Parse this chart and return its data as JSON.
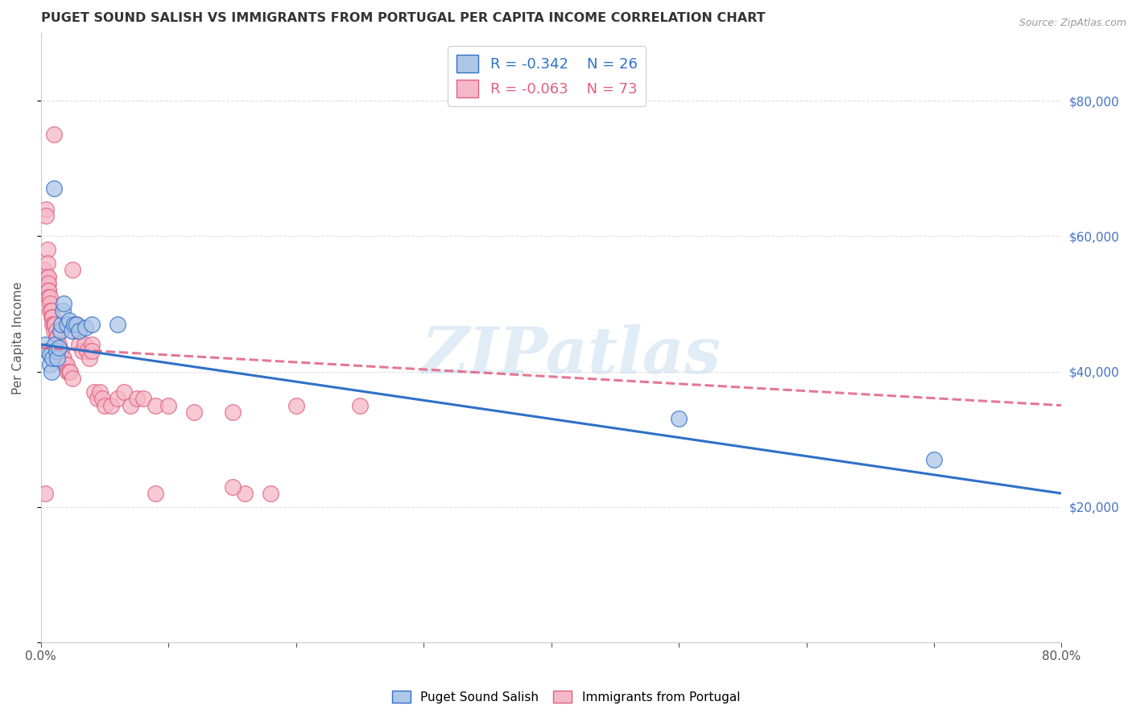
{
  "title": "PUGET SOUND SALISH VS IMMIGRANTS FROM PORTUGAL PER CAPITA INCOME CORRELATION CHART",
  "source": "Source: ZipAtlas.com",
  "ylabel": "Per Capita Income",
  "legend_blue_r": "-0.342",
  "legend_blue_n": "26",
  "legend_pink_r": "-0.063",
  "legend_pink_n": "73",
  "label_blue": "Puget Sound Salish",
  "label_pink": "Immigrants from Portugal",
  "blue_color": "#aec6e8",
  "pink_color": "#f5b8c8",
  "blue_line_color": "#3070c8",
  "pink_line_color": "#e06080",
  "blue_scatter": [
    [
      0.003,
      44000
    ],
    [
      0.005,
      43000
    ],
    [
      0.007,
      42500
    ],
    [
      0.007,
      41000
    ],
    [
      0.008,
      40000
    ],
    [
      0.009,
      42000
    ],
    [
      0.01,
      67000
    ],
    [
      0.011,
      44000
    ],
    [
      0.012,
      43000
    ],
    [
      0.013,
      42000
    ],
    [
      0.014,
      43500
    ],
    [
      0.015,
      46000
    ],
    [
      0.016,
      47000
    ],
    [
      0.017,
      49000
    ],
    [
      0.018,
      50000
    ],
    [
      0.02,
      47000
    ],
    [
      0.022,
      47500
    ],
    [
      0.024,
      46000
    ],
    [
      0.026,
      47000
    ],
    [
      0.028,
      47000
    ],
    [
      0.03,
      46000
    ],
    [
      0.035,
      46500
    ],
    [
      0.04,
      47000
    ],
    [
      0.06,
      47000
    ],
    [
      0.5,
      33000
    ],
    [
      0.7,
      27000
    ]
  ],
  "pink_scatter": [
    [
      0.002,
      55000
    ],
    [
      0.003,
      53000
    ],
    [
      0.003,
      52000
    ],
    [
      0.004,
      64000
    ],
    [
      0.004,
      63000
    ],
    [
      0.005,
      58000
    ],
    [
      0.005,
      56000
    ],
    [
      0.005,
      54000
    ],
    [
      0.005,
      53000
    ],
    [
      0.006,
      54000
    ],
    [
      0.006,
      53000
    ],
    [
      0.006,
      52000
    ],
    [
      0.006,
      52000
    ],
    [
      0.006,
      51000
    ],
    [
      0.007,
      51000
    ],
    [
      0.007,
      50000
    ],
    [
      0.007,
      49000
    ],
    [
      0.008,
      49000
    ],
    [
      0.008,
      48000
    ],
    [
      0.009,
      48000
    ],
    [
      0.009,
      47000
    ],
    [
      0.01,
      75000
    ],
    [
      0.01,
      47000
    ],
    [
      0.01,
      46000
    ],
    [
      0.011,
      47000
    ],
    [
      0.012,
      46000
    ],
    [
      0.012,
      45000
    ],
    [
      0.013,
      45000
    ],
    [
      0.014,
      44000
    ],
    [
      0.015,
      43000
    ],
    [
      0.015,
      43000
    ],
    [
      0.016,
      43000
    ],
    [
      0.017,
      42000
    ],
    [
      0.018,
      42000
    ],
    [
      0.019,
      41000
    ],
    [
      0.02,
      41000
    ],
    [
      0.021,
      40000
    ],
    [
      0.022,
      40000
    ],
    [
      0.023,
      40000
    ],
    [
      0.025,
      55000
    ],
    [
      0.025,
      39000
    ],
    [
      0.026,
      46000
    ],
    [
      0.028,
      47000
    ],
    [
      0.03,
      46000
    ],
    [
      0.03,
      44000
    ],
    [
      0.032,
      43000
    ],
    [
      0.034,
      44000
    ],
    [
      0.036,
      43000
    ],
    [
      0.038,
      42000
    ],
    [
      0.04,
      44000
    ],
    [
      0.04,
      43000
    ],
    [
      0.042,
      37000
    ],
    [
      0.044,
      36000
    ],
    [
      0.046,
      37000
    ],
    [
      0.048,
      36000
    ],
    [
      0.05,
      35000
    ],
    [
      0.055,
      35000
    ],
    [
      0.06,
      36000
    ],
    [
      0.065,
      37000
    ],
    [
      0.07,
      35000
    ],
    [
      0.075,
      36000
    ],
    [
      0.08,
      36000
    ],
    [
      0.09,
      35000
    ],
    [
      0.1,
      35000
    ],
    [
      0.12,
      34000
    ],
    [
      0.15,
      34000
    ],
    [
      0.16,
      22000
    ],
    [
      0.18,
      22000
    ],
    [
      0.2,
      35000
    ],
    [
      0.25,
      35000
    ],
    [
      0.003,
      22000
    ],
    [
      0.09,
      22000
    ],
    [
      0.15,
      23000
    ]
  ],
  "blue_line": [
    [
      0.0,
      44000
    ],
    [
      0.8,
      22000
    ]
  ],
  "pink_line": [
    [
      0.0,
      43500
    ],
    [
      0.8,
      35000
    ]
  ],
  "watermark_text": "ZIPatlas",
  "background_color": "#ffffff",
  "grid_color": "#e0e0e0",
  "ylim": [
    0,
    90000
  ],
  "xlim": [
    0.0,
    0.8
  ],
  "x_ticks": [
    0.0,
    0.1,
    0.2,
    0.3,
    0.4,
    0.5,
    0.6,
    0.7,
    0.8
  ],
  "y_ticks": [
    0,
    20000,
    40000,
    60000,
    80000
  ],
  "y_right_labels": [
    "",
    "$20,000",
    "$40,000",
    "$60,000",
    "$80,000"
  ],
  "right_tick_color": "#4472c4"
}
